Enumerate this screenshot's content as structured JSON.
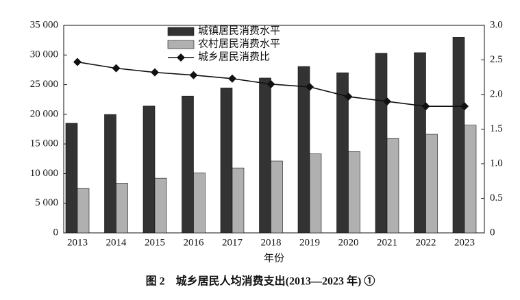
{
  "chart_data": {
    "type": "bar_line",
    "title": "图 2　城乡居民人均消费支出(2013—2023 年) ①",
    "x_label": "年份",
    "categories": [
      "2013",
      "2014",
      "2015",
      "2016",
      "2017",
      "2018",
      "2019",
      "2020",
      "2021",
      "2022",
      "2023"
    ],
    "series": [
      {
        "name": "城镇居民消费水平",
        "type": "bar",
        "color": "#333333",
        "values": [
          18488,
          19968,
          21392,
          23079,
          24445,
          26112,
          28063,
          27007,
          30307,
          30391,
          32994
        ]
      },
      {
        "name": "农村居民消费水平",
        "type": "bar",
        "color": "#b0b0b0",
        "values": [
          7485,
          8383,
          9223,
          10130,
          10955,
          12124,
          13328,
          13713,
          15916,
          16632,
          18175
        ]
      },
      {
        "name": "城乡居民消费比",
        "type": "line",
        "axis": "y2",
        "color": "#111111",
        "values": [
          2.47,
          2.38,
          2.32,
          2.28,
          2.23,
          2.15,
          2.11,
          1.97,
          1.9,
          1.83,
          1.83
        ]
      }
    ],
    "ylim": [
      0,
      35000
    ],
    "yticks": [
      0,
      {
        "value": 5000,
        "label": "5 000"
      },
      {
        "value": 10000,
        "label": "10 000"
      },
      {
        "value": 15000,
        "label": "15 000"
      },
      {
        "value": 20000,
        "label": "20 000"
      },
      {
        "value": 25000,
        "label": "25 000"
      },
      {
        "value": 30000,
        "label": "30 000"
      },
      {
        "value": 35000,
        "label": "35 000"
      }
    ],
    "y2lim": [
      0,
      3
    ],
    "y2ticks": [
      0,
      0.5,
      {
        "value": 1,
        "label": "1.0"
      },
      1.5,
      {
        "value": 2,
        "label": "2.0"
      },
      2.5,
      {
        "value": 3,
        "label": "3.0"
      }
    ]
  }
}
